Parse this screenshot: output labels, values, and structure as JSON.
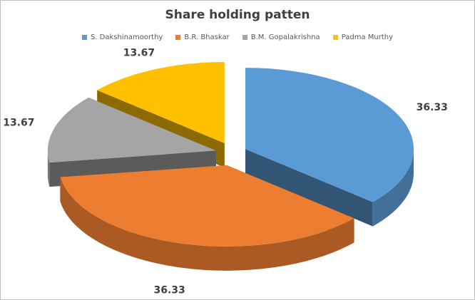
{
  "chart_data": {
    "type": "pie",
    "title": "Share holding patten",
    "legend_position": "top",
    "exploded": true,
    "style": "3d",
    "series": [
      {
        "name": "S. Dakshinamoorthy",
        "value": 36.33,
        "label": "36.33",
        "color": "#5b9bd5"
      },
      {
        "name": "B.R. Bhaskar",
        "value": 36.33,
        "label": "36.33",
        "color": "#ed7d31"
      },
      {
        "name": "B.M. Gopalakrishna",
        "value": 13.67,
        "label": "13.67",
        "color": "#a5a5a5"
      },
      {
        "name": "Padma Murthy",
        "value": 13.67,
        "label": "13.67",
        "color": "#ffc000"
      }
    ]
  }
}
